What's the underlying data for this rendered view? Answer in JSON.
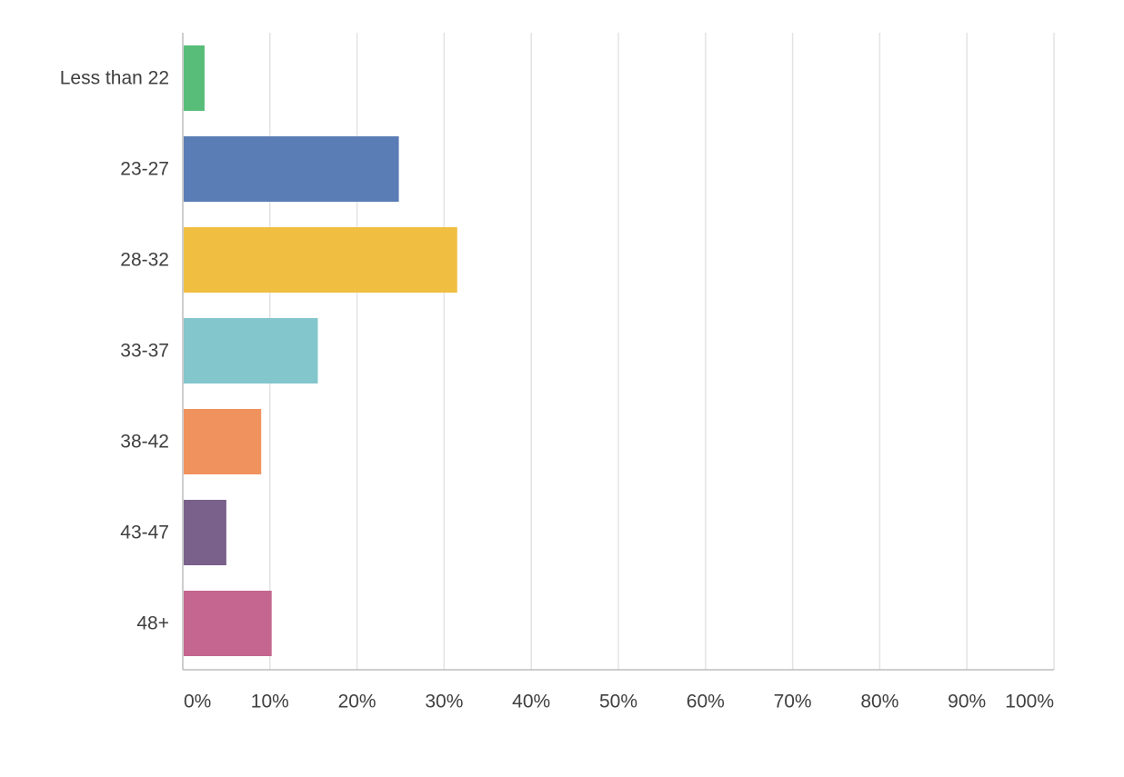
{
  "chart_data": {
    "type": "bar",
    "orientation": "horizontal",
    "categories": [
      "Less than 22",
      "23-27",
      "28-32",
      "33-37",
      "38-42",
      "43-47",
      "48+"
    ],
    "values": [
      2.5,
      24.8,
      31.5,
      15.5,
      9.0,
      5.0,
      10.2
    ],
    "colors": [
      "#57bd78",
      "#5a7db5",
      "#f0be41",
      "#83c6cb",
      "#f0925d",
      "#7a618c",
      "#c4668f"
    ],
    "xlim": [
      0,
      100
    ],
    "xticks": [
      "0%",
      "10%",
      "20%",
      "30%",
      "40%",
      "50%",
      "60%",
      "70%",
      "80%",
      "90%",
      "100%"
    ],
    "grid": true,
    "title": "",
    "xlabel": "",
    "ylabel": ""
  }
}
